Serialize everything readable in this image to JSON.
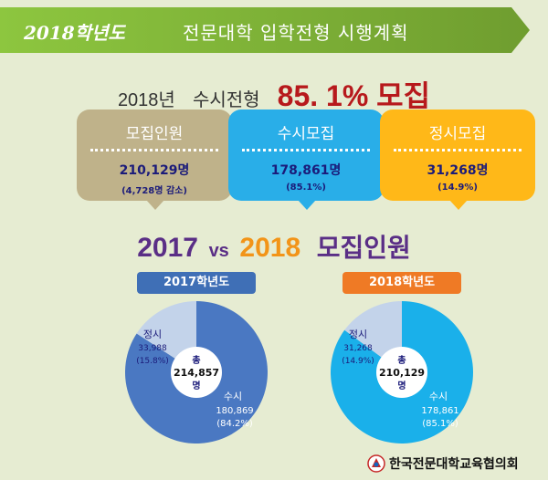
{
  "banner": {
    "year": "2018학년도",
    "title": "전문대학 입학전형 시행계획"
  },
  "headline": {
    "year": "2018년",
    "label": "수시전형",
    "percent": "85. 1% 모집"
  },
  "cards": {
    "recruit": {
      "title": "모집인원",
      "value": "210,129명",
      "sub": "(4,728명 감소)"
    },
    "susi": {
      "title": "수시모집",
      "value": "178,861명",
      "sub": "(85.1%)"
    },
    "jeongsi": {
      "title": "정시모집",
      "value": "31,268명",
      "sub": "(14.9%)"
    }
  },
  "compare": {
    "year_a": "2017",
    "vs": "vs",
    "year_b": "2018",
    "label": "모집인원"
  },
  "colors": {
    "banner": "#7cb342",
    "headline_percent": "#b7191c",
    "card_recruit": "#bfb28a",
    "card_susi": "#29aee8",
    "card_jeongsi": "#ffb818",
    "pie_2017_susi": "#4a78c2",
    "pie_2018_susi": "#1ab0ea",
    "pie_jeongsi": "#c3d3ea"
  },
  "chart_data": [
    {
      "type": "pie",
      "title": "2017학년도",
      "center_label": "총",
      "center_value": "214,857",
      "center_unit": "명",
      "slices": [
        {
          "name": "정시",
          "value": 33988,
          "value_label": "33,988",
          "pct_label": "(15.8%)",
          "color": "#c3d3ea"
        },
        {
          "name": "수시",
          "value": 180869,
          "value_label": "180,869",
          "pct_label": "(84.2%)",
          "color": "#4a78c2"
        }
      ]
    },
    {
      "type": "pie",
      "title": "2018학년도",
      "center_label": "총",
      "center_value": "210,129",
      "center_unit": "명",
      "slices": [
        {
          "name": "정시",
          "value": 31268,
          "value_label": "31,268",
          "pct_label": "(14.9%)",
          "color": "#c3d3ea"
        },
        {
          "name": "수시",
          "value": 178861,
          "value_label": "178,861",
          "pct_label": "(85.1%)",
          "color": "#1ab0ea"
        }
      ]
    }
  ],
  "footer": {
    "org_name": "한국전문대학교육협의회",
    "logo_icon": "kcce-logo-icon"
  }
}
